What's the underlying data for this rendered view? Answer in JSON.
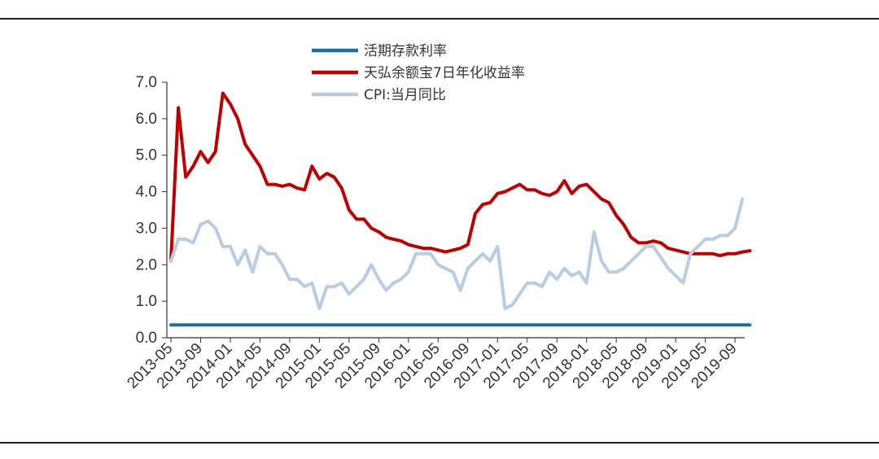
{
  "chart_data": {
    "type": "line",
    "ylim": [
      0,
      7
    ],
    "yticks": [
      "0.0",
      "1.0",
      "2.0",
      "3.0",
      "4.0",
      "5.0",
      "6.0",
      "7.0"
    ],
    "xticks": [
      "2013-05",
      "2013-09",
      "2014-01",
      "2014-05",
      "2014-09",
      "2015-01",
      "2015-05",
      "2015-09",
      "2016-01",
      "2016-05",
      "2016-09",
      "2017-01",
      "2017-05",
      "2017-09",
      "2018-01",
      "2018-05",
      "2018-09",
      "2019-01",
      "2019-05",
      "2019-09"
    ],
    "legend_position": "top-center",
    "series": [
      {
        "name": "活期存款利率",
        "color": "#1f6fa3",
        "points": [
          [
            "2013-05",
            0.35
          ],
          [
            "2019-11",
            0.35
          ]
        ]
      },
      {
        "name": "天弘余额宝7日年化收益率",
        "color": "#c00000",
        "points": [
          [
            "2013-05",
            2.1
          ],
          [
            "2013-06",
            6.3
          ],
          [
            "2013-07",
            4.4
          ],
          [
            "2013-08",
            4.7
          ],
          [
            "2013-09",
            5.1
          ],
          [
            "2013-10",
            4.8
          ],
          [
            "2013-11",
            5.1
          ],
          [
            "2013-12",
            6.7
          ],
          [
            "2014-01",
            6.4
          ],
          [
            "2014-02",
            6.0
          ],
          [
            "2014-03",
            5.3
          ],
          [
            "2014-04",
            5.0
          ],
          [
            "2014-05",
            4.7
          ],
          [
            "2014-06",
            4.2
          ],
          [
            "2014-07",
            4.2
          ],
          [
            "2014-08",
            4.15
          ],
          [
            "2014-09",
            4.2
          ],
          [
            "2014-10",
            4.1
          ],
          [
            "2014-11",
            4.05
          ],
          [
            "2014-12",
            4.7
          ],
          [
            "2015-01",
            4.35
          ],
          [
            "2015-02",
            4.5
          ],
          [
            "2015-03",
            4.4
          ],
          [
            "2015-04",
            4.1
          ],
          [
            "2015-05",
            3.5
          ],
          [
            "2015-06",
            3.25
          ],
          [
            "2015-07",
            3.25
          ],
          [
            "2015-08",
            3.0
          ],
          [
            "2015-09",
            2.9
          ],
          [
            "2015-10",
            2.75
          ],
          [
            "2015-11",
            2.7
          ],
          [
            "2015-12",
            2.65
          ],
          [
            "2016-01",
            2.55
          ],
          [
            "2016-02",
            2.5
          ],
          [
            "2016-03",
            2.45
          ],
          [
            "2016-04",
            2.45
          ],
          [
            "2016-05",
            2.4
          ],
          [
            "2016-06",
            2.35
          ],
          [
            "2016-07",
            2.4
          ],
          [
            "2016-08",
            2.45
          ],
          [
            "2016-09",
            2.55
          ],
          [
            "2016-10",
            3.4
          ],
          [
            "2016-11",
            3.65
          ],
          [
            "2016-12",
            3.7
          ],
          [
            "2017-01",
            3.95
          ],
          [
            "2017-02",
            4.0
          ],
          [
            "2017-03",
            4.1
          ],
          [
            "2017-04",
            4.2
          ],
          [
            "2017-05",
            4.05
          ],
          [
            "2017-06",
            4.05
          ],
          [
            "2017-07",
            3.95
          ],
          [
            "2017-08",
            3.9
          ],
          [
            "2017-09",
            4.0
          ],
          [
            "2017-10",
            4.3
          ],
          [
            "2017-11",
            3.95
          ],
          [
            "2017-12",
            4.15
          ],
          [
            "2018-01",
            4.2
          ],
          [
            "2018-02",
            4.0
          ],
          [
            "2018-03",
            3.8
          ],
          [
            "2018-04",
            3.7
          ],
          [
            "2018-05",
            3.35
          ],
          [
            "2018-06",
            3.1
          ],
          [
            "2018-07",
            2.75
          ],
          [
            "2018-08",
            2.6
          ],
          [
            "2018-09",
            2.6
          ],
          [
            "2018-10",
            2.65
          ],
          [
            "2018-11",
            2.6
          ],
          [
            "2018-12",
            2.45
          ],
          [
            "2019-01",
            2.4
          ],
          [
            "2019-02",
            2.35
          ],
          [
            "2019-03",
            2.3
          ],
          [
            "2019-04",
            2.3
          ],
          [
            "2019-05",
            2.3
          ],
          [
            "2019-06",
            2.3
          ],
          [
            "2019-07",
            2.25
          ],
          [
            "2019-08",
            2.3
          ],
          [
            "2019-09",
            2.3
          ],
          [
            "2019-10",
            2.35
          ],
          [
            "2019-11",
            2.38
          ]
        ]
      },
      {
        "name": "CPI:当月同比",
        "color": "#b8cce4",
        "points": [
          [
            "2013-05",
            2.1
          ],
          [
            "2013-06",
            2.7
          ],
          [
            "2013-07",
            2.7
          ],
          [
            "2013-08",
            2.6
          ],
          [
            "2013-09",
            3.1
          ],
          [
            "2013-10",
            3.2
          ],
          [
            "2013-11",
            3.0
          ],
          [
            "2013-12",
            2.5
          ],
          [
            "2014-01",
            2.5
          ],
          [
            "2014-02",
            2.0
          ],
          [
            "2014-03",
            2.4
          ],
          [
            "2014-04",
            1.8
          ],
          [
            "2014-05",
            2.5
          ],
          [
            "2014-06",
            2.3
          ],
          [
            "2014-07",
            2.3
          ],
          [
            "2014-08",
            2.0
          ],
          [
            "2014-09",
            1.6
          ],
          [
            "2014-10",
            1.6
          ],
          [
            "2014-11",
            1.4
          ],
          [
            "2014-12",
            1.5
          ],
          [
            "2015-01",
            0.8
          ],
          [
            "2015-02",
            1.4
          ],
          [
            "2015-03",
            1.4
          ],
          [
            "2015-04",
            1.5
          ],
          [
            "2015-05",
            1.2
          ],
          [
            "2015-06",
            1.4
          ],
          [
            "2015-07",
            1.6
          ],
          [
            "2015-08",
            2.0
          ],
          [
            "2015-09",
            1.6
          ],
          [
            "2015-10",
            1.3
          ],
          [
            "2015-11",
            1.5
          ],
          [
            "2015-12",
            1.6
          ],
          [
            "2016-01",
            1.8
          ],
          [
            "2016-02",
            2.3
          ],
          [
            "2016-03",
            2.3
          ],
          [
            "2016-04",
            2.3
          ],
          [
            "2016-05",
            2.0
          ],
          [
            "2016-06",
            1.9
          ],
          [
            "2016-07",
            1.8
          ],
          [
            "2016-08",
            1.3
          ],
          [
            "2016-09",
            1.9
          ],
          [
            "2016-10",
            2.1
          ],
          [
            "2016-11",
            2.3
          ],
          [
            "2016-12",
            2.1
          ],
          [
            "2017-01",
            2.5
          ],
          [
            "2017-02",
            0.8
          ],
          [
            "2017-03",
            0.9
          ],
          [
            "2017-04",
            1.2
          ],
          [
            "2017-05",
            1.5
          ],
          [
            "2017-06",
            1.5
          ],
          [
            "2017-07",
            1.4
          ],
          [
            "2017-08",
            1.8
          ],
          [
            "2017-09",
            1.6
          ],
          [
            "2017-10",
            1.9
          ],
          [
            "2017-11",
            1.7
          ],
          [
            "2017-12",
            1.8
          ],
          [
            "2018-01",
            1.5
          ],
          [
            "2018-02",
            2.9
          ],
          [
            "2018-03",
            2.1
          ],
          [
            "2018-04",
            1.8
          ],
          [
            "2018-05",
            1.8
          ],
          [
            "2018-06",
            1.9
          ],
          [
            "2018-07",
            2.1
          ],
          [
            "2018-08",
            2.3
          ],
          [
            "2018-09",
            2.5
          ],
          [
            "2018-10",
            2.5
          ],
          [
            "2018-11",
            2.2
          ],
          [
            "2018-12",
            1.9
          ],
          [
            "2019-01",
            1.7
          ],
          [
            "2019-02",
            1.5
          ],
          [
            "2019-03",
            2.3
          ],
          [
            "2019-04",
            2.5
          ],
          [
            "2019-05",
            2.7
          ],
          [
            "2019-06",
            2.7
          ],
          [
            "2019-07",
            2.8
          ],
          [
            "2019-08",
            2.8
          ],
          [
            "2019-09",
            3.0
          ],
          [
            "2019-10",
            3.8
          ]
        ]
      }
    ]
  }
}
